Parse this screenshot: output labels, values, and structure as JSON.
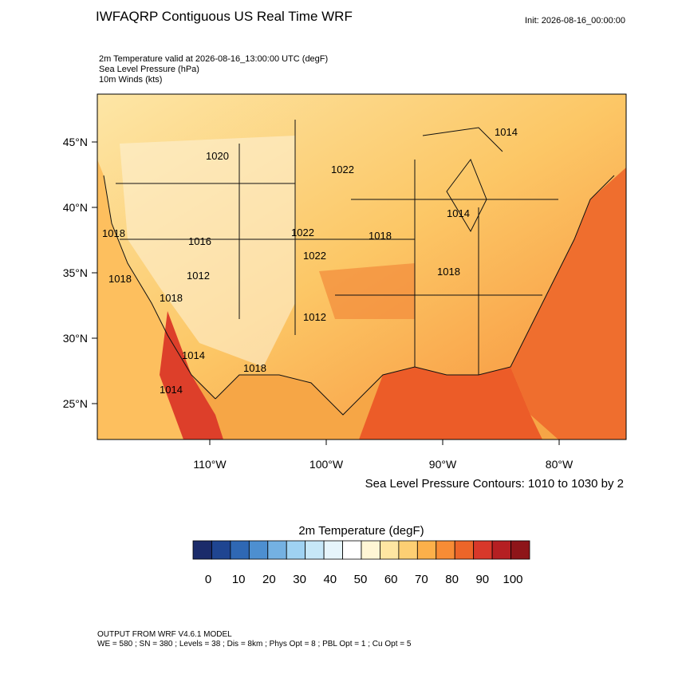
{
  "header": {
    "title": "IWFAQRP Contiguous US Real Time WRF",
    "init": "Init: 2026-08-16_00:00:00",
    "fields": [
      "2m Temperature valid at 2026-08-16_13:00:00 UTC   (degF)",
      "Sea Level Pressure   (hPa)",
      "10m Winds   (kts)"
    ]
  },
  "map": {
    "lat_ticks": [
      {
        "value": 45,
        "label": "45°N"
      },
      {
        "value": 40,
        "label": "40°N"
      },
      {
        "value": 35,
        "label": "35°N"
      },
      {
        "value": 30,
        "label": "30°N"
      },
      {
        "value": 25,
        "label": "25°N"
      }
    ],
    "lon_ticks": [
      {
        "value": -110,
        "label": "110°W"
      },
      {
        "value": -100,
        "label": "100°W"
      },
      {
        "value": -90,
        "label": "90°W"
      },
      {
        "value": -80,
        "label": "80°W"
      }
    ],
    "contour_labels": [
      "1014",
      "1020",
      "1022",
      "1018",
      "1022",
      "1022",
      "1018",
      "1014",
      "1018",
      "1012",
      "1018",
      "1018",
      "1016",
      "1012",
      "1014",
      "1018",
      "1014"
    ],
    "contour_note": "Sea Level Pressure Contours: 1010 to 1030 by 2"
  },
  "colorbar": {
    "title": "2m Temperature  (degF)",
    "ticks": [
      0,
      10,
      20,
      30,
      40,
      50,
      60,
      70,
      80,
      90,
      100
    ],
    "colors": [
      "#1b2b6a",
      "#1f4591",
      "#2f68b4",
      "#4d8fd0",
      "#74b1e2",
      "#9fd2f2",
      "#c6e7f7",
      "#e6f5fb",
      "#ffffff",
      "#fff6d5",
      "#fee6a2",
      "#fdcf73",
      "#fcb04a",
      "#f78c35",
      "#ec6529",
      "#d8382a",
      "#b51f22",
      "#8e1519"
    ]
  },
  "footer": {
    "lines": [
      "OUTPUT FROM WRF V4.6.1 MODEL",
      "WE = 580 ; SN = 380 ; Levels = 38 ; Dis = 8km ; Phys Opt = 8 ; PBL Opt = 1 ; Cu Opt = 5"
    ]
  }
}
